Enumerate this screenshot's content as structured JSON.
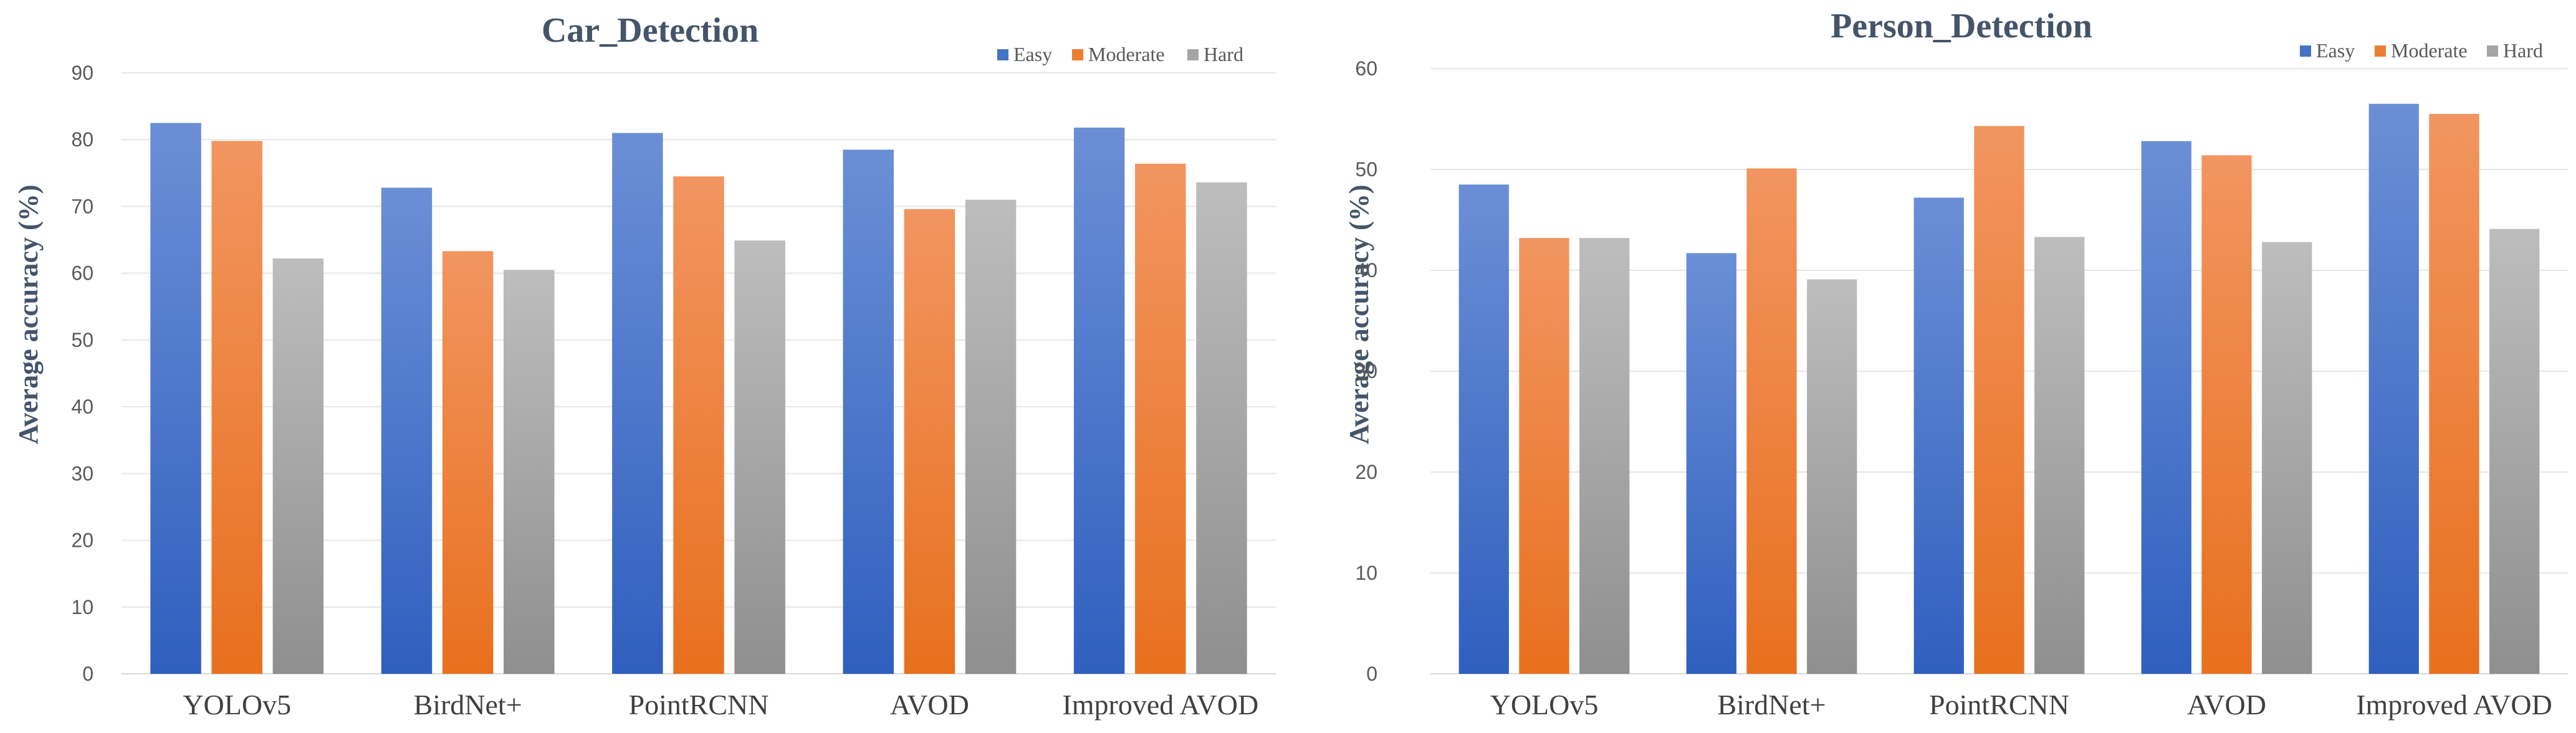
{
  "chart_data": [
    {
      "type": "bar",
      "title": "Car_Detection",
      "xlabel": "",
      "ylabel": "Average accuracy  (%)",
      "ylim": [
        0,
        90
      ],
      "yticks": [
        0,
        10,
        20,
        30,
        40,
        50,
        60,
        70,
        80,
        90
      ],
      "categories": [
        "YOLOv5",
        "BirdNet+",
        "PointRCNN",
        "AVOD",
        "Improved AVOD"
      ],
      "series": [
        {
          "name": "Easy",
          "color": "#4472c4",
          "values": [
            82.5,
            72.8,
            81.0,
            78.5,
            81.8
          ]
        },
        {
          "name": "Moderate",
          "color": "#ed7d31",
          "values": [
            79.8,
            63.3,
            74.5,
            69.6,
            76.4
          ]
        },
        {
          "name": "Hard",
          "color": "#a5a5a5",
          "values": [
            62.2,
            60.5,
            64.9,
            71.0,
            73.6
          ]
        }
      ],
      "legend": "top-right",
      "grid": true
    },
    {
      "type": "bar",
      "title": "Person_Detection",
      "xlabel": "",
      "ylabel": "Average accuracy  (%)",
      "ylim": [
        0,
        60
      ],
      "yticks": [
        0,
        10,
        20,
        30,
        40,
        50,
        60
      ],
      "categories": [
        "YOLOv5",
        "BirdNet+",
        "PointRCNN",
        "AVOD",
        "Improved AVOD"
      ],
      "series": [
        {
          "name": "Easy",
          "color": "#4472c4",
          "values": [
            48.5,
            41.7,
            47.2,
            52.8,
            56.5
          ]
        },
        {
          "name": "Moderate",
          "color": "#ed7d31",
          "values": [
            43.2,
            50.1,
            54.3,
            51.4,
            55.5
          ]
        },
        {
          "name": "Hard",
          "color": "#a5a5a5",
          "values": [
            43.2,
            39.1,
            43.3,
            42.8,
            44.1
          ]
        }
      ],
      "legend": "top-right",
      "grid": true
    }
  ]
}
